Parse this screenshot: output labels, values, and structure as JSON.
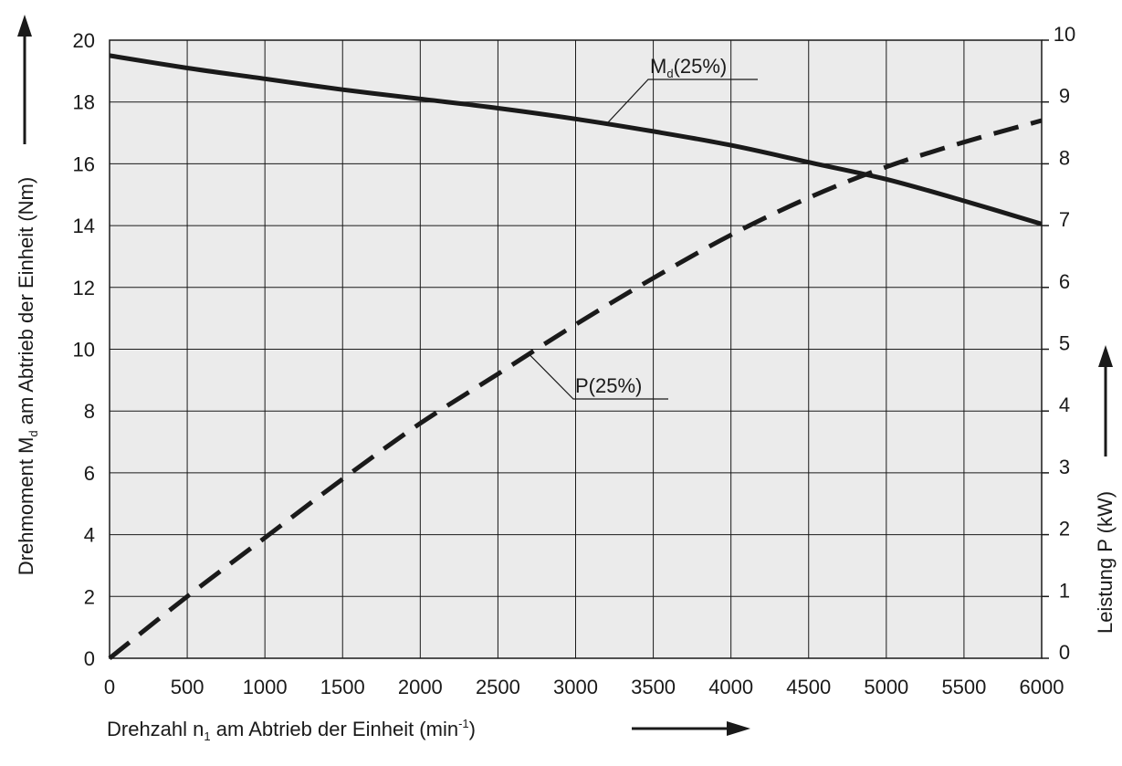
{
  "chart_data": {
    "type": "line",
    "x": [
      0,
      500,
      1000,
      1500,
      2000,
      2500,
      3000,
      3500,
      4000,
      4500,
      5000,
      5500,
      6000
    ],
    "xlim": [
      0,
      6000
    ],
    "ylim_left": [
      0,
      20
    ],
    "ylim_right": [
      0,
      10
    ],
    "x_ticks": [
      "0",
      "500",
      "1000",
      "1500",
      "2000",
      "2500",
      "3000",
      "3500",
      "4000",
      "4500",
      "5000",
      "5500",
      "6000"
    ],
    "y_ticks_left": [
      "0",
      "2",
      "4",
      "6",
      "8",
      "10",
      "12",
      "14",
      "16",
      "18",
      "20"
    ],
    "y_ticks_right": [
      "0",
      "1",
      "2",
      "3",
      "4",
      "5",
      "6",
      "7",
      "8",
      "9",
      "10"
    ],
    "grid": true,
    "xlabel": {
      "pre": "Drehzahl n",
      "sub": "1",
      "mid": " am Abtrieb der Einheit (min",
      "sup": "-1",
      "post": ")"
    },
    "ylabel_left": {
      "pre": "Drehmoment M",
      "sub": "d",
      "post": " am Abtrieb der Einheit (Nm)"
    },
    "ylabel_right": "Leistung P (kW)",
    "series": [
      {
        "name": "Md(25%)",
        "label": {
          "pre": "M",
          "sub": "d",
          "post": "(25%)"
        },
        "axis": "left",
        "style": "solid",
        "values": [
          19.5,
          19.1,
          18.75,
          18.4,
          18.1,
          17.8,
          17.45,
          17.05,
          16.6,
          16.05,
          15.5,
          14.8,
          14.05
        ]
      },
      {
        "name": "P(25%)",
        "label": {
          "pre": "P(25%)",
          "sub": "",
          "post": ""
        },
        "axis": "right",
        "style": "dashed",
        "values": [
          0,
          1.0,
          1.95,
          2.9,
          3.8,
          4.6,
          5.4,
          6.15,
          6.85,
          7.45,
          7.95,
          8.35,
          8.7
        ]
      }
    ],
    "colors": {
      "plot_bg": "#ebebeb",
      "grid": "#1a1a1a",
      "line": "#1a1a1a"
    }
  }
}
